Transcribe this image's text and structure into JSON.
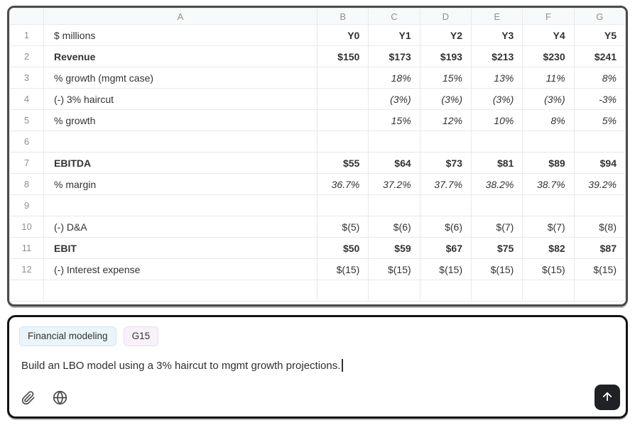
{
  "colors": {
    "accent_teal": "#287d9b",
    "negative_gray": "#8e8e8e",
    "tag_blue_bg": "#eaf4fa",
    "tag_pink_bg": "#f9f1fa",
    "send_button_bg": "#202124",
    "grid_line": "#e9e9e9"
  },
  "spreadsheet": {
    "column_headers": [
      "A",
      "B",
      "C",
      "D",
      "E",
      "F",
      "G"
    ],
    "rows": [
      {
        "num": "1",
        "cells": [
          [
            "$ millions",
            "plain"
          ],
          [
            "Y0",
            "semibold"
          ],
          [
            "Y1",
            "semibold"
          ],
          [
            "Y2",
            "semibold"
          ],
          [
            "Y3",
            "semibold"
          ],
          [
            "Y4",
            "semibold"
          ],
          [
            "Y5",
            "semibold"
          ]
        ]
      },
      {
        "num": "2",
        "cells": [
          [
            "Revenue",
            "bold"
          ],
          [
            "$150",
            "semibold"
          ],
          [
            "$173",
            "semibold"
          ],
          [
            "$193",
            "semibold"
          ],
          [
            "$213",
            "semibold"
          ],
          [
            "$230",
            "semibold"
          ],
          [
            "$241",
            "semibold"
          ]
        ]
      },
      {
        "num": "3",
        "cells": [
          [
            "% growth (mgmt case)",
            "plain"
          ],
          [
            "",
            "plain"
          ],
          [
            "18%",
            "teal-italic"
          ],
          [
            "15%",
            "teal-italic"
          ],
          [
            "13%",
            "teal-italic"
          ],
          [
            "11%",
            "teal-italic"
          ],
          [
            "8%",
            "teal-italic"
          ]
        ]
      },
      {
        "num": "4",
        "cells": [
          [
            "(-) 3% haircut",
            "plain"
          ],
          [
            "",
            "plain"
          ],
          [
            "(3%)",
            "teal-italic"
          ],
          [
            "(3%)",
            "teal-italic"
          ],
          [
            "(3%)",
            "teal-italic"
          ],
          [
            "(3%)",
            "teal-italic"
          ],
          [
            "-3%",
            "teal-italic"
          ]
        ]
      },
      {
        "num": "5",
        "cells": [
          [
            "% growth",
            "plain"
          ],
          [
            "",
            "plain"
          ],
          [
            "15%",
            "teal-italic"
          ],
          [
            "12%",
            "teal-italic"
          ],
          [
            "10%",
            "teal-italic"
          ],
          [
            "8%",
            "teal-italic"
          ],
          [
            "5%",
            "teal-italic"
          ]
        ]
      },
      {
        "num": "6",
        "cells": [
          [
            "",
            "plain"
          ],
          [
            "",
            "plain"
          ],
          [
            "",
            "plain"
          ],
          [
            "",
            "plain"
          ],
          [
            "",
            "plain"
          ],
          [
            "",
            "plain"
          ],
          [
            "",
            "plain"
          ]
        ]
      },
      {
        "num": "7",
        "cells": [
          [
            "EBITDA",
            "bold"
          ],
          [
            "$55",
            "teal-semibold"
          ],
          [
            "$64",
            "semibold"
          ],
          [
            "$73",
            "semibold"
          ],
          [
            "$81",
            "semibold"
          ],
          [
            "$89",
            "semibold"
          ],
          [
            "$94",
            "semibold"
          ]
        ]
      },
      {
        "num": "8",
        "cells": [
          [
            "% margin",
            "plain"
          ],
          [
            "36.7%",
            "gray-italic"
          ],
          [
            "37.2%",
            "teal-italic"
          ],
          [
            "37.7%",
            "teal-italic"
          ],
          [
            "38.2%",
            "teal-italic"
          ],
          [
            "38.7%",
            "teal-italic"
          ],
          [
            "39.2%",
            "teal-italic"
          ]
        ]
      },
      {
        "num": "9",
        "cells": [
          [
            "",
            "plain"
          ],
          [
            "",
            "plain"
          ],
          [
            "",
            "plain"
          ],
          [
            "",
            "plain"
          ],
          [
            "",
            "plain"
          ],
          [
            "",
            "plain"
          ],
          [
            "",
            "plain"
          ]
        ]
      },
      {
        "num": "10",
        "cells": [
          [
            "(-) D&A",
            "plain"
          ],
          [
            "$(5)",
            "gray"
          ],
          [
            "$(6)",
            "gray"
          ],
          [
            "$(6)",
            "gray"
          ],
          [
            "$(7)",
            "gray"
          ],
          [
            "$(7)",
            "gray"
          ],
          [
            "$(8)",
            "gray"
          ]
        ]
      },
      {
        "num": "11",
        "cells": [
          [
            "EBIT",
            "bold"
          ],
          [
            "$50",
            "semibold"
          ],
          [
            "$59",
            "semibold"
          ],
          [
            "$67",
            "semibold"
          ],
          [
            "$75",
            "semibold"
          ],
          [
            "$82",
            "semibold"
          ],
          [
            "$87",
            "semibold"
          ]
        ]
      },
      {
        "num": "12",
        "cells": [
          [
            "(-) Interest expense",
            "plain"
          ],
          [
            "$(15)",
            "gray"
          ],
          [
            "$(15)",
            "gray"
          ],
          [
            "$(15)",
            "gray"
          ],
          [
            "$(15)",
            "gray"
          ],
          [
            "$(15)",
            "gray"
          ],
          [
            "$(15)",
            "gray"
          ]
        ]
      },
      {
        "num": "",
        "cells": [
          [
            "",
            "plain"
          ],
          [
            "",
            "plain"
          ],
          [
            "",
            "plain"
          ],
          [
            "",
            "plain"
          ],
          [
            "",
            "plain"
          ],
          [
            "",
            "plain"
          ],
          [
            "",
            "plain"
          ]
        ]
      }
    ]
  },
  "chat": {
    "tags": [
      {
        "label": "Financial modeling",
        "style": "blue"
      },
      {
        "label": "G15",
        "style": "pink"
      }
    ],
    "message": "Build an LBO model using a 3% haircut to mgmt growth projections.",
    "attach_icon": "paperclip-icon",
    "web_icon": "globe-icon",
    "send_icon": "arrow-up-icon"
  }
}
